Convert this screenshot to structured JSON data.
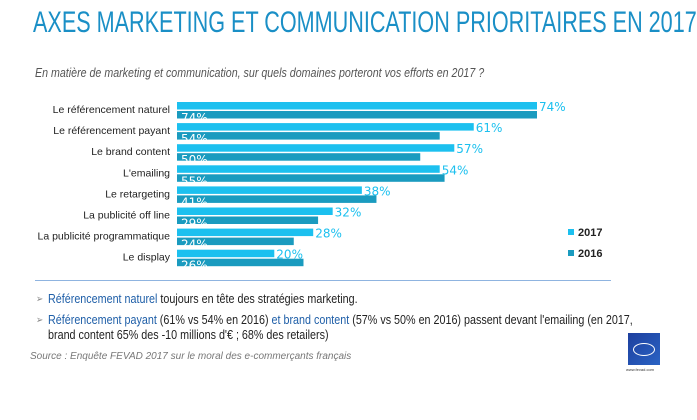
{
  "header": {
    "title": "AXES MARKETING ET COMMUNICATION PRIORITAIRES EN 2017",
    "subtitle": "En matière de marketing et communication, sur quels domaines porteront vos efforts en 2017 ?"
  },
  "chart_data": {
    "type": "bar",
    "orientation": "horizontal",
    "categories": [
      "Le référencement naturel",
      "Le référencement payant",
      "Le brand content",
      "L'emailing",
      "Le retargeting",
      "La publicité off line",
      "La publicité programmatique",
      "Le display"
    ],
    "series": [
      {
        "name": "2017",
        "values": [
          74,
          61,
          57,
          54,
          38,
          32,
          28,
          20
        ],
        "color": "#1cc0ef"
      },
      {
        "name": "2016",
        "values": [
          74,
          54,
          50,
          55,
          41,
          29,
          24,
          26
        ],
        "color": "#1a9bbf"
      }
    ],
    "value_suffix": "%",
    "xlim": [
      0,
      74
    ],
    "grid": false,
    "legend_position": "bottom-right"
  },
  "bullets": [
    {
      "parts": [
        {
          "text": "Référencement naturel",
          "hl": true
        },
        {
          "text": " toujours en tête des stratégies marketing.",
          "hl": false
        }
      ]
    },
    {
      "parts": [
        {
          "text": "Référencement payant",
          "hl": true
        },
        {
          "text": " (61% vs 54% en 2016) ",
          "hl": false
        },
        {
          "text": "et brand content",
          "hl": true
        },
        {
          "text": " (57% vs 50% en 2016) passent devant l'emailing (en 2017, brand content 65% des -10 millions d'€ ; 68% des retailers)",
          "hl": false
        }
      ]
    }
  ],
  "bullet_icon": "chevron-right-icon",
  "source": "Source : Enquête FEVAD 2017 sur le moral des e-commerçants français",
  "logo": {
    "text": "fevad",
    "url": "www.fevad.com"
  }
}
